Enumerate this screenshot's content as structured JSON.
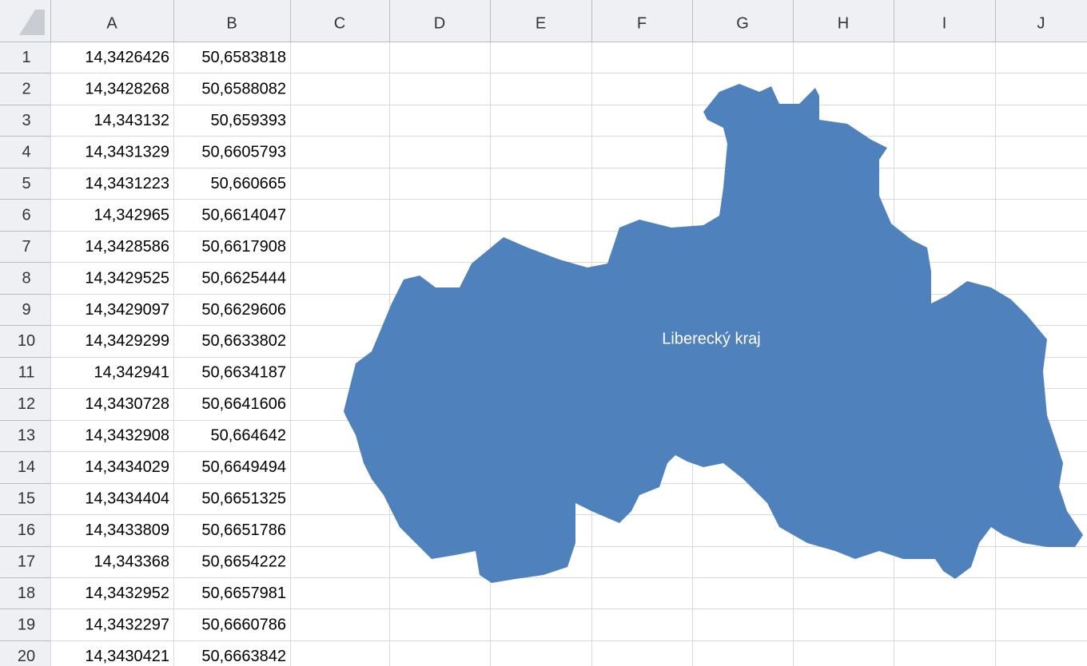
{
  "columns": [
    "A",
    "B",
    "C",
    "D",
    "E",
    "F",
    "G",
    "H",
    "I",
    "J"
  ],
  "rows": [
    {
      "number": 1,
      "cells": [
        "14,3426426",
        "50,6583818"
      ]
    },
    {
      "number": 2,
      "cells": [
        "14,3428268",
        "50,6588082"
      ]
    },
    {
      "number": 3,
      "cells": [
        "14,343132",
        "50,659393"
      ]
    },
    {
      "number": 4,
      "cells": [
        "14,3431329",
        "50,6605793"
      ]
    },
    {
      "number": 5,
      "cells": [
        "14,3431223",
        "50,660665"
      ]
    },
    {
      "number": 6,
      "cells": [
        "14,342965",
        "50,6614047"
      ]
    },
    {
      "number": 7,
      "cells": [
        "14,3428586",
        "50,6617908"
      ]
    },
    {
      "number": 8,
      "cells": [
        "14,3429525",
        "50,6625444"
      ]
    },
    {
      "number": 9,
      "cells": [
        "14,3429097",
        "50,6629606"
      ]
    },
    {
      "number": 10,
      "cells": [
        "14,3429299",
        "50,6633802"
      ]
    },
    {
      "number": 11,
      "cells": [
        "14,342941",
        "50,6634187"
      ]
    },
    {
      "number": 12,
      "cells": [
        "14,3430728",
        "50,6641606"
      ]
    },
    {
      "number": 13,
      "cells": [
        "14,3432908",
        "50,664642"
      ]
    },
    {
      "number": 14,
      "cells": [
        "14,3434029",
        "50,6649494"
      ]
    },
    {
      "number": 15,
      "cells": [
        "14,3434404",
        "50,6651325"
      ]
    },
    {
      "number": 16,
      "cells": [
        "14,3433809",
        "50,6651786"
      ]
    },
    {
      "number": 17,
      "cells": [
        "14,343368",
        "50,6654222"
      ]
    },
    {
      "number": 18,
      "cells": [
        "14,3432952",
        "50,6657981"
      ]
    },
    {
      "number": 19,
      "cells": [
        "14,3432297",
        "50,6660786"
      ]
    },
    {
      "number": 20,
      "cells": [
        "14,3430421",
        "50,6663842"
      ]
    }
  ],
  "map": {
    "label": "Liberecký kraj"
  }
}
